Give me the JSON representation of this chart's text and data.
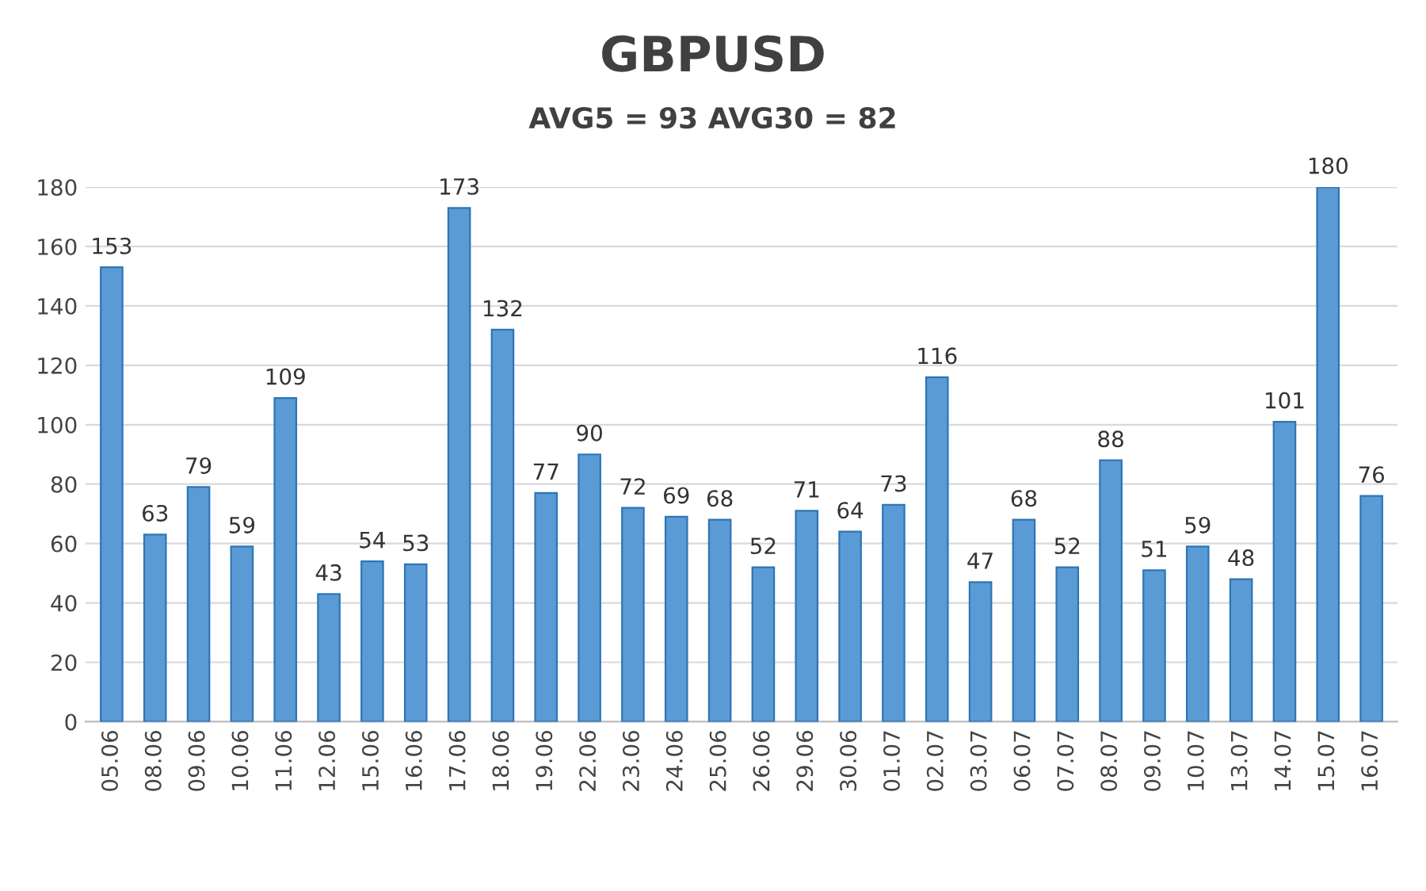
{
  "chart_data": {
    "type": "bar",
    "title": "GBPUSD",
    "subtitle": "AVG5 = 93 AVG30 = 82",
    "categories": [
      "05.06",
      "08.06",
      "09.06",
      "10.06",
      "11.06",
      "12.06",
      "15.06",
      "16.06",
      "17.06",
      "18.06",
      "19.06",
      "22.06",
      "23.06",
      "24.06",
      "25.06",
      "26.06",
      "29.06",
      "30.06",
      "01.07",
      "02.07",
      "03.07",
      "06.07",
      "07.07",
      "08.07",
      "09.07",
      "10.07",
      "13.07",
      "14.07",
      "15.07",
      "16.07"
    ],
    "values": [
      153,
      63,
      79,
      59,
      109,
      43,
      54,
      53,
      173,
      132,
      77,
      90,
      72,
      69,
      68,
      52,
      71,
      64,
      73,
      116,
      47,
      68,
      52,
      88,
      51,
      59,
      48,
      101,
      180,
      76
    ],
    "color": "#5b9bd5",
    "ylim": [
      0,
      180
    ],
    "yticks": [
      0,
      20,
      40,
      60,
      80,
      100,
      120,
      140,
      160,
      180
    ],
    "grid": "y",
    "data_labels": true
  }
}
